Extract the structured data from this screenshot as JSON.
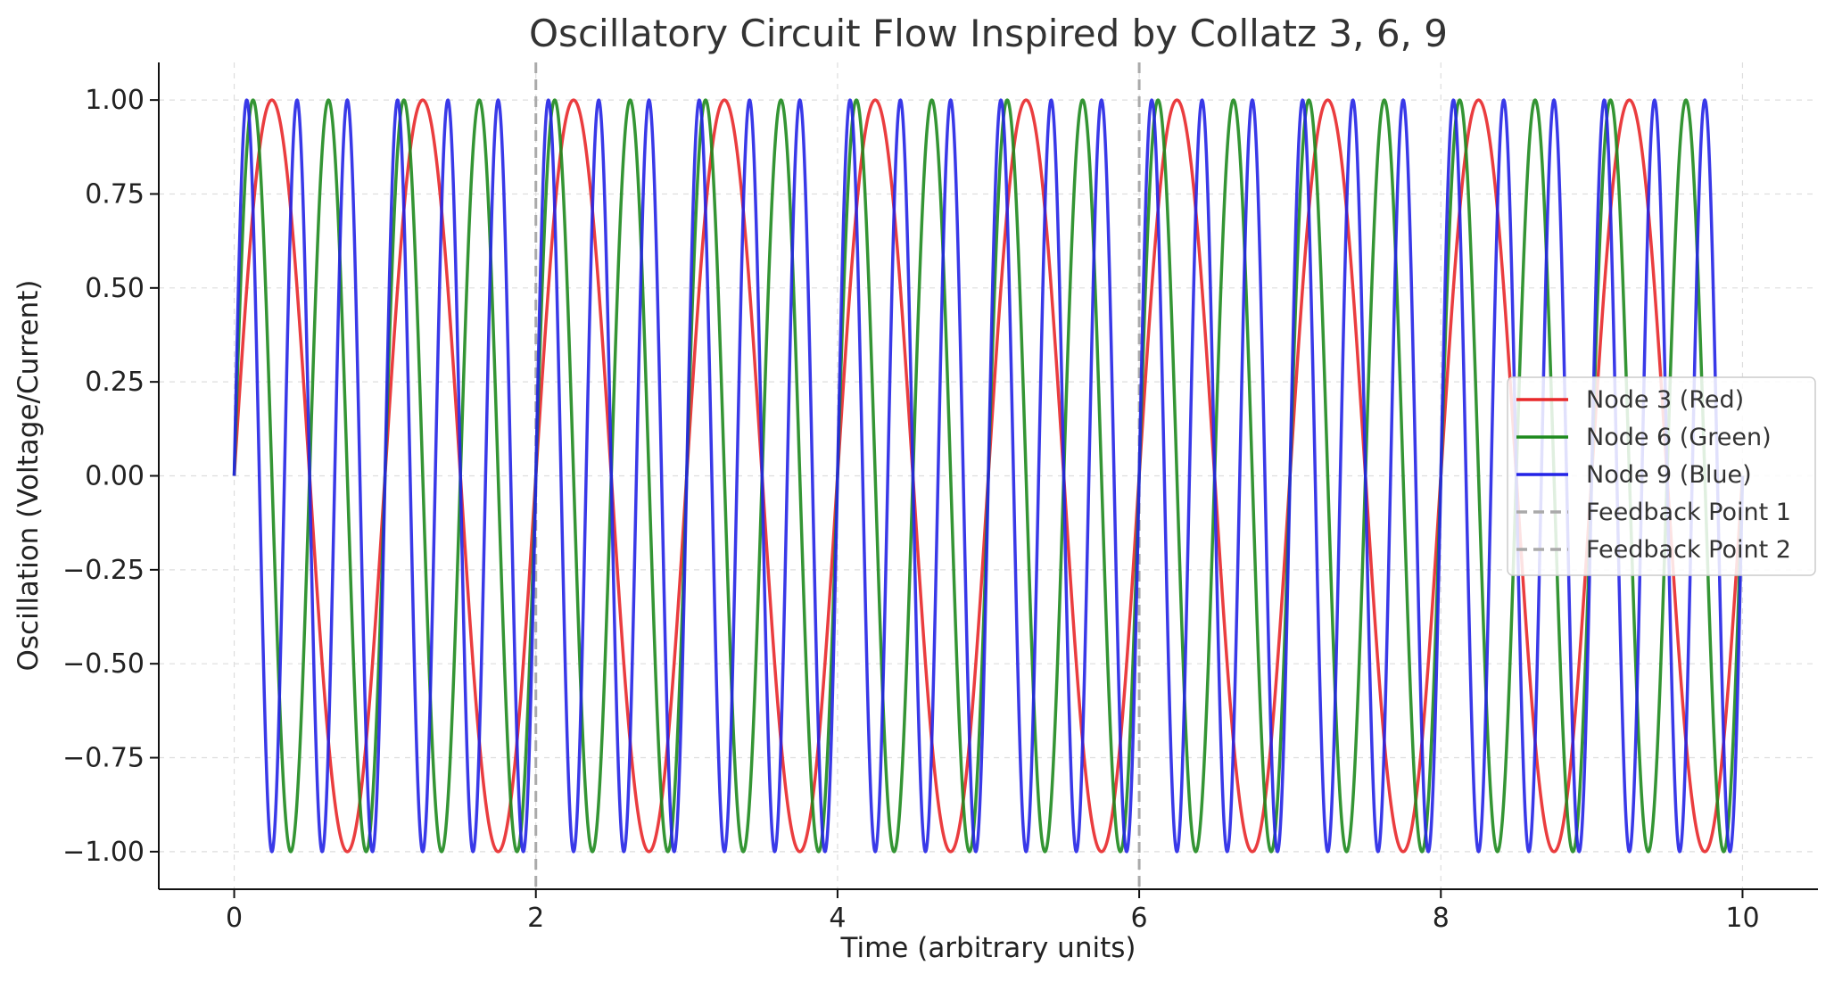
{
  "chart_data": {
    "type": "line",
    "title": "Oscillatory Circuit Flow Inspired by Collatz 3, 6, 9",
    "xlabel": "Time (arbitrary units)",
    "ylabel": "Oscillation (Voltage/Current)",
    "xlim": [
      -0.5,
      10.5
    ],
    "ylim": [
      -1.1,
      1.1
    ],
    "x_ticks": [
      0,
      2,
      4,
      6,
      8,
      10
    ],
    "x_tick_labels": [
      "0",
      "2",
      "4",
      "6",
      "8",
      "10"
    ],
    "y_ticks": [
      1.0,
      0.75,
      0.5,
      0.25,
      0.0,
      -0.25,
      -0.5,
      -0.75,
      -1.0
    ],
    "y_tick_labels": [
      "1.00",
      "0.75",
      "0.50",
      "0.25",
      "0.00",
      "−0.25",
      "−0.50",
      "−0.75",
      "−1.00"
    ],
    "grid": true,
    "legend_position": "center-right",
    "x_range": [
      0,
      10
    ],
    "series": [
      {
        "name": "Node 3 (Red)",
        "function": "sin",
        "frequency": 1,
        "amplitude": 1,
        "color": "#e8282a"
      },
      {
        "name": "Node 6 (Green)",
        "function": "sin",
        "frequency": 2,
        "amplitude": 1,
        "color": "#1e8a1e"
      },
      {
        "name": "Node 9 (Blue)",
        "function": "sin",
        "frequency": 3,
        "amplitude": 1,
        "color": "#2323e6"
      }
    ],
    "vertical_lines": [
      {
        "name": "Feedback Point 1",
        "x": 2,
        "color": "#aaaaaa"
      },
      {
        "name": "Feedback Point 2",
        "x": 6,
        "color": "#aaaaaa"
      }
    ]
  }
}
